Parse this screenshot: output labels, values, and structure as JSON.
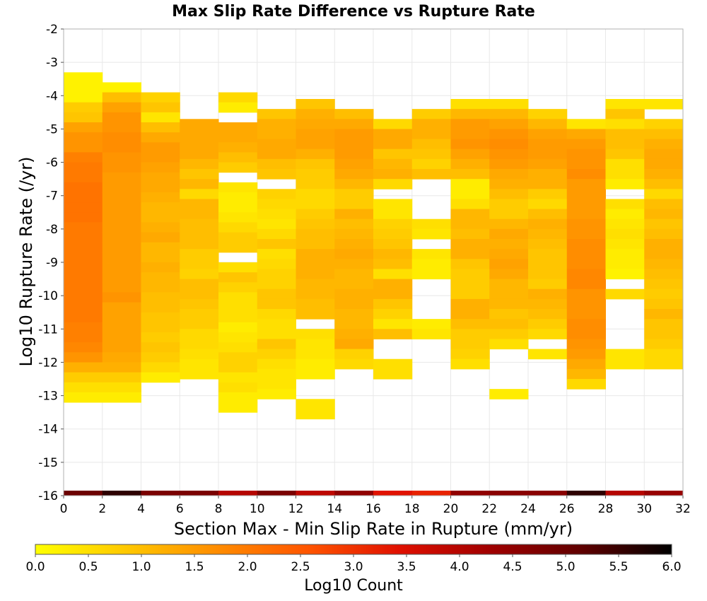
{
  "chart_data": {
    "type": "heatmap",
    "title": "Max Slip Rate Difference vs Rupture Rate",
    "xlabel": "Section Max - Min Slip Rate in Rupture (mm/yr)",
    "ylabel": "Log10 Rupture Rate (/yr)",
    "xlim": [
      0,
      32
    ],
    "ylim": [
      -16,
      -2
    ],
    "x_ticks": [
      "0",
      "2",
      "4",
      "6",
      "8",
      "10",
      "12",
      "14",
      "16",
      "18",
      "20",
      "22",
      "24",
      "26",
      "28",
      "30",
      "32"
    ],
    "y_ticks": [
      "-2",
      "-3",
      "-4",
      "-5",
      "-6",
      "-7",
      "-8",
      "-9",
      "-10",
      "-11",
      "-12",
      "-13",
      "-14",
      "-15",
      "-16"
    ],
    "x_bin_width": 2,
    "y_bin_height": 0.3,
    "y_bin_origin": -16,
    "grid": true,
    "colorbar": {
      "label": "Log10 Count",
      "min": 0.0,
      "max": 6.0,
      "ticks": [
        "0.0",
        "0.5",
        "1.0",
        "1.5",
        "2.0",
        "2.5",
        "3.0",
        "3.5",
        "4.0",
        "4.5",
        "5.0",
        "5.5",
        "6.0"
      ],
      "colors": [
        "#ffff00",
        "#ffc800",
        "#ff8c00",
        "#ff5500",
        "#e01000",
        "#a00000",
        "#600000",
        "#000000"
      ]
    },
    "columns": [
      {
        "x0": 0,
        "top": -3.3,
        "values": [
          0.2,
          0.2,
          0.2,
          0.8,
          0.9,
          1.4,
          1.6,
          1.6,
          1.9,
          2.0,
          2.0,
          2.1,
          2.1,
          2.1,
          2.1,
          2.0,
          2.0,
          2.0,
          2.0,
          2.0,
          2.0,
          2.0,
          2.0,
          2.0,
          2.0,
          1.9,
          1.9,
          1.8,
          1.6,
          1.2,
          0.8,
          0.5,
          0.3
        ]
      },
      {
        "x0": 2,
        "top": -3.6,
        "values": [
          0.2,
          1.0,
          1.4,
          1.6,
          1.6,
          1.7,
          1.7,
          1.6,
          1.6,
          1.5,
          1.5,
          1.5,
          1.5,
          1.5,
          1.5,
          1.5,
          1.5,
          1.5,
          1.5,
          1.5,
          1.5,
          1.6,
          1.4,
          1.4,
          1.4,
          1.4,
          1.4,
          1.3,
          1.2,
          0.8,
          0.5,
          0.3
        ]
      },
      {
        "x0": 4,
        "top": -3.9,
        "values": [
          0.7,
          0.9,
          0.4,
          1.0,
          1.3,
          1.5,
          1.5,
          1.4,
          1.3,
          1.3,
          1.2,
          1.1,
          1.1,
          1.2,
          1.3,
          1.1,
          1.1,
          1.2,
          1.1,
          1.1,
          1.0,
          1.0,
          0.9,
          0.9,
          0.8,
          0.9,
          0.8,
          0.6,
          0.3
        ]
      },
      {
        "x0": 6,
        "top": -4.7,
        "values": [
          1.3,
          1.3,
          1.3,
          1.3,
          1.1,
          0.9,
          1.1,
          0.6,
          1.1,
          1.1,
          1.0,
          1.0,
          1.0,
          0.8,
          0.8,
          0.7,
          1.0,
          1.0,
          0.9,
          0.8,
          0.8,
          0.6,
          0.6,
          0.5,
          0.4,
          0.4
        ]
      },
      {
        "x0": 8,
        "top": -3.9,
        "values": [
          0.6,
          0.3,
          null,
          1.3,
          1.3,
          1.2,
          1.0,
          0.8,
          null,
          0.4,
          0.3,
          0.3,
          0.4,
          0.6,
          0.8,
          0.8,
          null,
          0.5,
          0.9,
          0.7,
          0.5,
          0.5,
          0.5,
          0.3,
          0.4,
          0.5,
          0.7,
          0.7,
          0.4,
          0.5,
          0.3,
          0.3
        ]
      },
      {
        "x0": 10,
        "top": -4.4,
        "values": [
          0.9,
          1.2,
          1.2,
          1.3,
          1.3,
          1.0,
          0.9,
          null,
          0.7,
          0.6,
          0.5,
          0.4,
          0.6,
          0.9,
          0.5,
          0.6,
          0.7,
          0.7,
          0.9,
          0.9,
          0.6,
          0.5,
          0.5,
          0.9,
          0.7,
          0.5,
          0.4,
          0.4,
          0.3
        ]
      },
      {
        "x0": 12,
        "top": -4.1,
        "values": [
          0.9,
          1.2,
          1.3,
          1.4,
          1.4,
          1.2,
          0.9,
          0.8,
          0.8,
          0.6,
          0.6,
          0.8,
          0.9,
          1.0,
          1.0,
          1.2,
          1.2,
          1.2,
          1.1,
          1.1,
          1.0,
          1.0,
          null,
          0.5,
          0.4,
          0.4,
          0.3,
          0.3,
          null,
          null,
          0.4,
          0.4
        ]
      },
      {
        "x0": 14,
        "top": -4.4,
        "values": [
          1.0,
          1.3,
          1.5,
          1.5,
          1.5,
          1.4,
          1.3,
          1.1,
          0.8,
          0.8,
          1.2,
          1.0,
          1.1,
          1.2,
          1.3,
          1.2,
          1.1,
          1.1,
          1.2,
          1.2,
          1.1,
          1.1,
          1.2,
          1.3,
          0.7,
          0.6
        ]
      },
      {
        "x0": 16,
        "top": -4.7,
        "values": [
          0.6,
          1.3,
          1.3,
          0.9,
          1.1,
          1.2,
          0.6,
          null,
          0.4,
          0.4,
          0.7,
          0.8,
          0.9,
          1.1,
          1.0,
          0.5,
          1.2,
          1.2,
          0.9,
          0.7,
          0.4,
          1.0,
          null,
          null,
          0.5,
          0.5
        ]
      },
      {
        "x0": 18,
        "top": -4.4,
        "values": [
          0.8,
          1.2,
          1.2,
          1.0,
          0.9,
          0.7,
          1.0,
          null,
          null,
          null,
          null,
          0.5,
          0.4,
          null,
          0.4,
          0.3,
          0.3,
          null,
          null,
          null,
          null,
          0.3,
          0.4
        ]
      },
      {
        "x0": 20,
        "top": -4.1,
        "values": [
          0.5,
          1.1,
          1.5,
          1.5,
          1.6,
          1.4,
          1.2,
          1.0,
          0.3,
          0.3,
          0.5,
          1.1,
          1.1,
          1.0,
          1.2,
          1.2,
          0.9,
          0.8,
          0.8,
          0.8,
          1.2,
          1.2,
          1.0,
          0.8,
          0.8,
          0.7,
          0.5
        ]
      },
      {
        "x0": 22,
        "top": -4.1,
        "values": [
          0.5,
          1.1,
          1.4,
          1.6,
          1.7,
          1.6,
          1.5,
          1.3,
          1.2,
          1.0,
          0.8,
          0.8,
          1.1,
          1.3,
          1.2,
          1.3,
          1.4,
          1.3,
          1.1,
          1.1,
          1.1,
          0.9,
          1.0,
          0.8,
          0.5,
          null,
          null,
          null,
          null,
          0.3
        ]
      },
      {
        "x0": 24,
        "top": -4.4,
        "values": [
          0.7,
          1.1,
          1.4,
          1.5,
          1.5,
          1.4,
          1.2,
          1.2,
          0.8,
          0.6,
          1.0,
          1.2,
          1.1,
          1.0,
          0.9,
          0.9,
          0.9,
          0.8,
          1.2,
          1.1,
          1.0,
          0.8,
          0.6,
          null,
          0.4
        ]
      },
      {
        "x0": 26,
        "top": -4.7,
        "values": [
          0.4,
          1.3,
          1.5,
          1.6,
          1.6,
          1.7,
          1.5,
          1.5,
          1.5,
          1.5,
          1.6,
          1.6,
          1.7,
          1.7,
          1.7,
          1.8,
          1.8,
          1.6,
          1.6,
          1.6,
          1.7,
          1.7,
          1.6,
          1.5,
          1.3,
          1.1,
          0.6
        ]
      },
      {
        "x0": 28,
        "top": -4.1,
        "values": [
          0.4,
          0.9,
          0.5,
          1.0,
          1.0,
          0.9,
          0.5,
          0.5,
          0.3,
          null,
          0.5,
          0.3,
          0.4,
          0.5,
          0.4,
          0.3,
          0.3,
          0.2,
          null,
          0.6,
          null,
          null,
          null,
          null,
          null,
          0.4,
          0.4
        ]
      },
      {
        "x0": 30,
        "top": -4.1,
        "values": [
          0.4,
          null,
          0.7,
          1.0,
          1.2,
          1.3,
          1.3,
          1.2,
          1.0,
          0.6,
          1.0,
          1.1,
          0.9,
          1.0,
          1.2,
          1.2,
          1.1,
          1.0,
          0.9,
          0.8,
          0.9,
          1.1,
          0.9,
          0.9,
          0.8,
          0.6,
          0.6
        ]
      }
    ],
    "bottom_row": {
      "y": -16,
      "values": [
        5.0,
        5.6,
        4.8,
        4.8,
        4.0,
        4.8,
        3.9,
        4.5,
        3.4,
        3.2,
        4.5,
        4.6,
        4.6,
        5.6,
        4.0,
        4.4
      ]
    }
  }
}
